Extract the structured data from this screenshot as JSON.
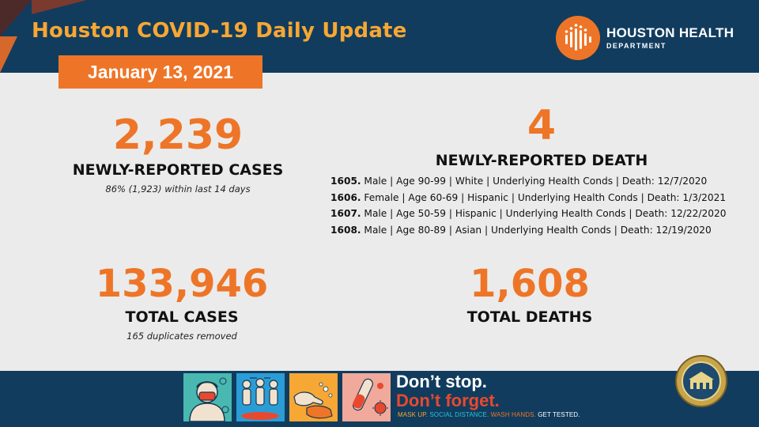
{
  "header": {
    "title": "Houston COVID-19 Daily Update",
    "date": "January 13, 2021",
    "logo_name": "HOUSTON HEALTH",
    "logo_dept": "DEPARTMENT",
    "logo_icon": "houston-health-logo-icon"
  },
  "stats": {
    "new_cases": {
      "value": "2,239",
      "label": "NEWLY-REPORTED CASES",
      "note": "86% (1,923) within last 14 days"
    },
    "new_deaths": {
      "value": "4",
      "label": "NEWLY-REPORTED DEATH"
    },
    "total_cases": {
      "value": "133,946",
      "label": "TOTAL CASES",
      "note": "165 duplicates removed"
    },
    "total_deaths": {
      "value": "1,608",
      "label": "TOTAL DEATHS"
    }
  },
  "deaths": [
    {
      "id": "1605.",
      "details": " Male | Age 90-99 | White | Underlying Health Conds | Death: 12/7/2020"
    },
    {
      "id": "1606.",
      "details": " Female | Age 60-69 | Hispanic | Underlying Health Conds | Death: 1/3/2021"
    },
    {
      "id": "1607.",
      "details": " Male | Age 50-59 | Hispanic | Underlying Health Conds | Death: 12/22/2020"
    },
    {
      "id": "1608.",
      "details": " Male | Age 80-89 | Asian | Underlying Health Conds | Death: 12/19/2020"
    }
  ],
  "footer": {
    "slogan_line1": "Don’t stop.",
    "slogan_line2": "Don’t forget.",
    "tag_mask": "MASK UP.",
    "tag_distance": "SOCIAL DISTANCE.",
    "tag_wash": "WASH HANDS.",
    "tag_test": "GET TESTED.",
    "icons": [
      "mask-icon",
      "social-distance-icon",
      "wash-hands-icon",
      "test-tube-icon"
    ],
    "seal_icon": "city-seal-icon"
  },
  "colors": {
    "navy": "#113c5e",
    "orange": "#ee7527",
    "gold": "#f7a733",
    "red": "#e8492e",
    "background": "#ebebeb"
  }
}
